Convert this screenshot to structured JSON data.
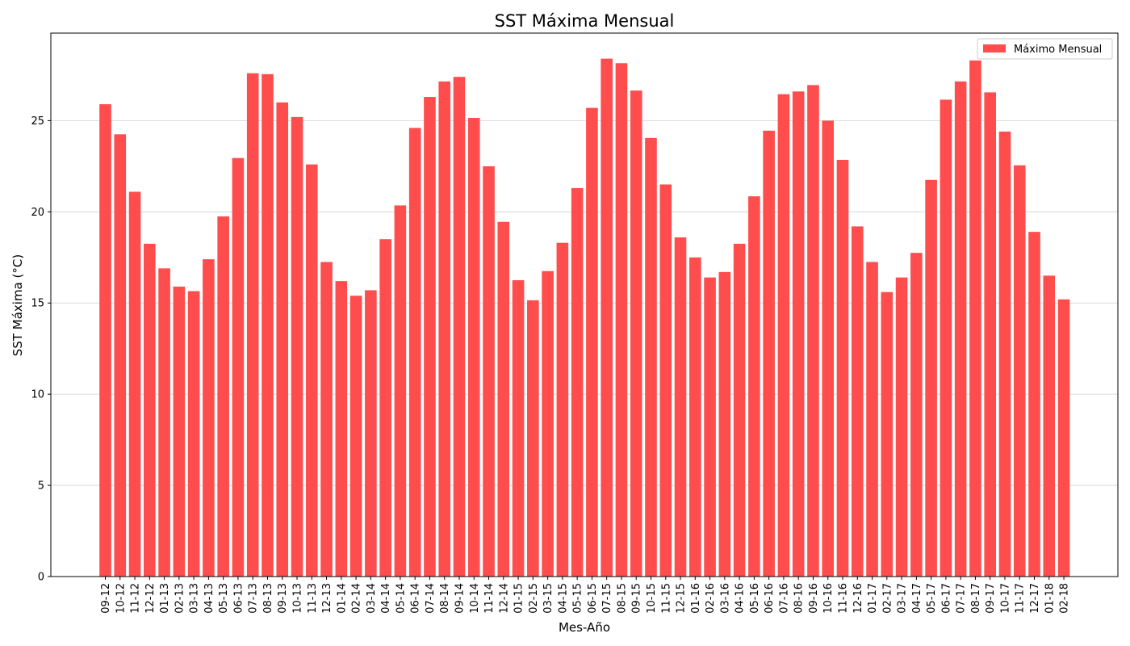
{
  "chart_data": {
    "type": "bar",
    "title": "SST Máxima Mensual",
    "xlabel": "Mes-Año",
    "ylabel": "SST Máxima (°C)",
    "ylim": [
      0,
      29.8
    ],
    "yticks": [
      0,
      5,
      10,
      15,
      20,
      25
    ],
    "grid": "y",
    "legend_position": "top-right",
    "categories": [
      "09-12",
      "10-12",
      "11-12",
      "12-12",
      "01-13",
      "02-13",
      "03-13",
      "04-13",
      "05-13",
      "06-13",
      "07-13",
      "08-13",
      "09-13",
      "10-13",
      "11-13",
      "12-13",
      "01-14",
      "02-14",
      "03-14",
      "04-14",
      "05-14",
      "06-14",
      "07-14",
      "08-14",
      "09-14",
      "10-14",
      "11-14",
      "12-14",
      "01-15",
      "02-15",
      "03-15",
      "04-15",
      "05-15",
      "06-15",
      "07-15",
      "08-15",
      "09-15",
      "10-15",
      "11-15",
      "12-15",
      "01-16",
      "02-16",
      "03-16",
      "04-16",
      "05-16",
      "06-16",
      "07-16",
      "08-16",
      "09-16",
      "10-16",
      "11-16",
      "12-16",
      "01-17",
      "02-17",
      "03-17",
      "04-17",
      "05-17",
      "06-17",
      "07-17",
      "08-17",
      "09-17",
      "10-17",
      "11-17",
      "12-17",
      "01-18",
      "02-18"
    ],
    "series": [
      {
        "name": "Máximo Mensual",
        "color": "#ff4d4d",
        "values": [
          25.9,
          24.25,
          21.1,
          18.25,
          16.9,
          15.9,
          15.65,
          17.4,
          19.75,
          22.95,
          27.6,
          27.55,
          26.0,
          25.2,
          22.6,
          17.25,
          16.2,
          15.4,
          15.7,
          18.5,
          20.35,
          24.6,
          26.3,
          27.15,
          27.4,
          25.15,
          22.5,
          19.45,
          16.25,
          15.15,
          16.75,
          18.3,
          21.3,
          25.7,
          28.4,
          28.15,
          26.65,
          24.05,
          21.5,
          18.6,
          17.5,
          16.4,
          16.7,
          18.25,
          20.85,
          24.45,
          26.45,
          26.6,
          26.95,
          25.0,
          22.85,
          19.2,
          17.25,
          15.6,
          16.4,
          17.75,
          21.75,
          26.15,
          27.15,
          28.3,
          26.55,
          24.4,
          22.55,
          18.9,
          16.5,
          15.2
        ]
      }
    ]
  }
}
